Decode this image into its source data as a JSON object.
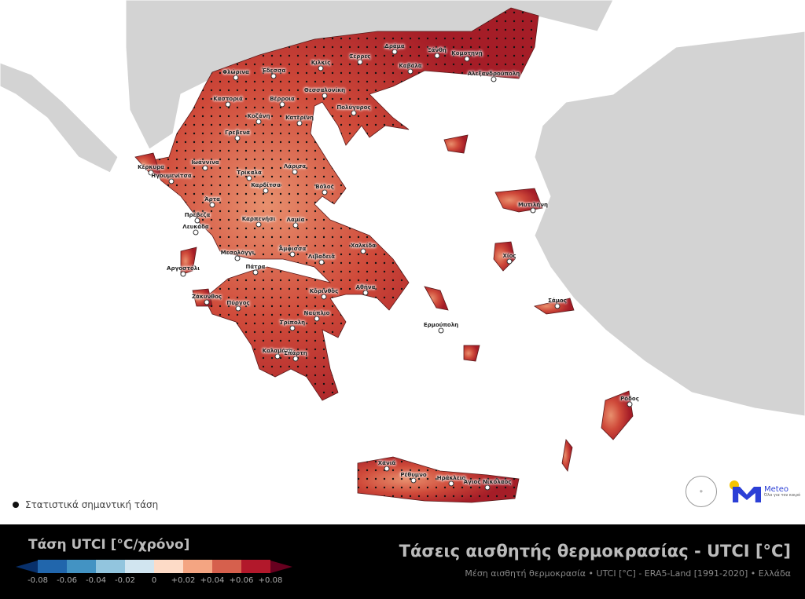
{
  "title": "Τάσεις αισθητής θερμοκρασίας - UTCI [°C]",
  "subtitle": "Μέση αισθητή θερμοκρασία • UTCI [°C] - ERA5-Land [1991-2020] • Ελλάδα",
  "significance_legend": "Στατιστικά σημαντική τάση",
  "legend": {
    "title": "Τάση UTCI [°C/χρόνο]",
    "ticks": [
      "-0.08",
      "-0.06",
      "-0.04",
      "-0.02",
      "0",
      "+0.02",
      "+0.04",
      "+0.06",
      "+0.08"
    ],
    "colors": [
      "#08306b",
      "#2166ac",
      "#4393c3",
      "#92c5de",
      "#d1e5f0",
      "#fddbc7",
      "#f4a582",
      "#d6604d",
      "#b2182b",
      "#67001f"
    ]
  },
  "colors": {
    "land_neighbors": "#d3d3d3",
    "sea": "#ffffff",
    "trend_main": "#c0392b",
    "trend_dark": "#9b1423",
    "trend_light": "#e8886a"
  },
  "logos": {
    "meteo": "Meteo",
    "meteo_tagline": "Όλα για τον καιρό"
  },
  "cities": [
    "Φλώρινα",
    "Έδεσσα",
    "Κιλκίς",
    "Σέρρες",
    "Δράμα",
    "Ξάνθη",
    "Κομοτηνή",
    "Αλεξανδρούπολη",
    "Καστοριά",
    "Βέρροια",
    "Θεσσαλονίκη",
    "Καβάλα",
    "Πολύγυρος",
    "Κοζάνη",
    "Κατερίνη",
    "Γρεβενά",
    "Ιωάννινα",
    "Κέρκυρα",
    "Ηγουμενίτσα",
    "Τρίκαλα",
    "Λάρισα",
    "Καρδίτσα",
    "Βόλος",
    "Άρτα",
    "Πρέβεζα",
    "Καρπενήσι",
    "Λαμία",
    "Λευκάδα",
    "Άμφισσα",
    "Λιβαδειά",
    "Χαλκίδα",
    "Μεσολόγγι",
    "Πάτρα",
    "Αργοστόλι",
    "Κόρινθος",
    "Αθήνα",
    "Ζάκυνθος",
    "Πύργος",
    "Τρίπολη",
    "Ναύπλιο",
    "Καλαμάτα",
    "Σπάρτη",
    "Μυτιλήνη",
    "Χίος",
    "Σάμος",
    "Ερμούπολη",
    "Ρόδος",
    "Χανιά",
    "Ρέθυμνο",
    "Ηράκλειο",
    "Άγιος Νικόλαος"
  ]
}
